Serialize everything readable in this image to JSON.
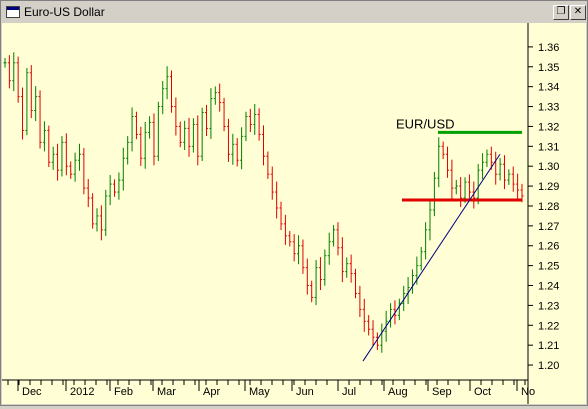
{
  "window": {
    "title": "Euro-US Dollar",
    "app_icon": "chart-window-icon",
    "restore_glyph": "❐",
    "close_glyph": "✕"
  },
  "chart_data": {
    "type": "ohlc-bar",
    "annotation": "EUR/USD",
    "y_ticks": [
      "1.20",
      "1.21",
      "1.22",
      "1.23",
      "1.24",
      "1.25",
      "1.26",
      "1.27",
      "1.28",
      "1.29",
      "1.30",
      "1.31",
      "1.32",
      "1.33",
      "1.34",
      "1.35",
      "1.36"
    ],
    "ylim": [
      1.195,
      1.37
    ],
    "x_ticks": [
      "Dec",
      "2012",
      "Feb",
      "Mar",
      "Apr",
      "May",
      "Jun",
      "Jul",
      "Aug",
      "Sep",
      "Oct",
      "No"
    ],
    "closes": [
      1.352,
      1.343,
      1.352,
      1.335,
      1.318,
      1.347,
      1.328,
      1.335,
      1.312,
      1.318,
      1.302,
      1.306,
      1.298,
      1.312,
      1.3,
      1.296,
      1.303,
      1.306,
      1.289,
      1.284,
      1.271,
      1.275,
      1.268,
      1.285,
      1.291,
      1.287,
      1.293,
      1.304,
      1.312,
      1.325,
      1.316,
      1.304,
      1.317,
      1.322,
      1.305,
      1.33,
      1.339,
      1.345,
      1.33,
      1.32,
      1.312,
      1.319,
      1.31,
      1.321,
      1.305,
      1.327,
      1.319,
      1.334,
      1.337,
      1.332,
      1.32,
      1.306,
      1.311,
      1.303,
      1.315,
      1.325,
      1.321,
      1.326,
      1.316,
      1.305,
      1.296,
      1.287,
      1.279,
      1.271,
      1.265,
      1.262,
      1.256,
      1.26,
      1.249,
      1.24,
      1.234,
      1.249,
      1.243,
      1.255,
      1.262,
      1.268,
      1.259,
      1.247,
      1.251,
      1.246,
      1.236,
      1.228,
      1.222,
      1.218,
      1.214,
      1.21,
      1.217,
      1.222,
      1.228,
      1.225,
      1.231,
      1.236,
      1.239,
      1.245,
      1.25,
      1.257,
      1.268,
      1.278,
      1.294,
      1.31,
      1.306,
      1.298,
      1.289,
      1.29,
      1.284,
      1.292,
      1.287,
      1.284,
      1.298,
      1.302,
      1.306,
      1.302,
      1.296,
      1.301,
      1.293,
      1.296,
      1.291,
      1.288,
      1.285
    ],
    "support_level": 1.283,
    "resistance_level": 1.317,
    "trendline": {
      "from": {
        "x": "Jul",
        "y": 1.202
      },
      "to": {
        "x": "Oct",
        "y": 1.306
      }
    },
    "colors": {
      "up": "#008000",
      "down": "#e00000",
      "support": "#e00000",
      "resistance": "#00a000",
      "trend": "#000080"
    },
    "grid": false
  }
}
